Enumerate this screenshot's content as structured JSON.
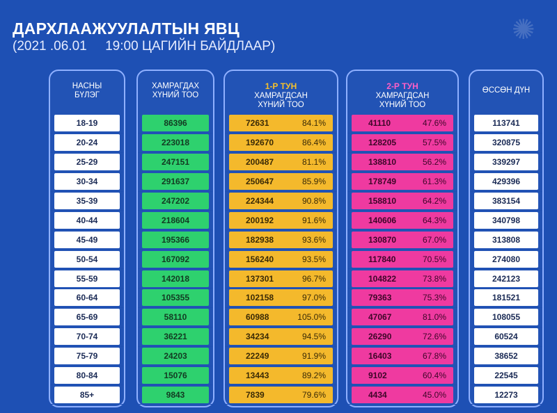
{
  "title": "ДАРХЛААЖУУЛАЛТЫН ЯВЦ",
  "subtitle": "(2021 .06.01     19:00 ЦАГИЙН БАЙДЛААР)",
  "headers": {
    "age": [
      "НАСНЫ",
      "БҮЛЭГ"
    ],
    "coverage": [
      "ХАМРАГДАХ",
      "ХҮНИЙ ТОО"
    ],
    "dose1": {
      "label": "1-Р ТУН",
      "lines": [
        "ХАМРАГДСАН",
        "ХҮНИЙ ТОО"
      ]
    },
    "dose2": {
      "label": "2-Р ТУН",
      "lines": [
        "ХАМРАГДСАН",
        "ХҮНИЙ ТОО"
      ]
    },
    "total": [
      "ӨССӨН ДҮН"
    ]
  },
  "colors": {
    "background": "#1e50b4",
    "coverage": "#2ed16e",
    "dose1": "#f4b92c",
    "dose2": "#ef3aa0"
  },
  "rows": [
    {
      "age": "18-19",
      "coverage": "86396",
      "d1": "72631",
      "d1pct": "84.1%",
      "d2": "41110",
      "d2pct": "47.6%",
      "total": "113741"
    },
    {
      "age": "20-24",
      "coverage": "223018",
      "d1": "192670",
      "d1pct": "86.4%",
      "d2": "128205",
      "d2pct": "57.5%",
      "total": "320875"
    },
    {
      "age": "25-29",
      "coverage": "247151",
      "d1": "200487",
      "d1pct": "81.1%",
      "d2": "138810",
      "d2pct": "56.2%",
      "total": "339297"
    },
    {
      "age": "30-34",
      "coverage": "291637",
      "d1": "250647",
      "d1pct": "85.9%",
      "d2": "178749",
      "d2pct": "61.3%",
      "total": "429396"
    },
    {
      "age": "35-39",
      "coverage": "247202",
      "d1": "224344",
      "d1pct": "90.8%",
      "d2": "158810",
      "d2pct": "64.2%",
      "total": "383154"
    },
    {
      "age": "40-44",
      "coverage": "218604",
      "d1": "200192",
      "d1pct": "91.6%",
      "d2": "140606",
      "d2pct": "64.3%",
      "total": "340798"
    },
    {
      "age": "45-49",
      "coverage": "195366",
      "d1": "182938",
      "d1pct": "93.6%",
      "d2": "130870",
      "d2pct": "67.0%",
      "total": "313808"
    },
    {
      "age": "50-54",
      "coverage": "167092",
      "d1": "156240",
      "d1pct": "93.5%",
      "d2": "117840",
      "d2pct": "70.5%",
      "total": "274080"
    },
    {
      "age": "55-59",
      "coverage": "142018",
      "d1": "137301",
      "d1pct": "96.7%",
      "d2": "104822",
      "d2pct": "73.8%",
      "total": "242123"
    },
    {
      "age": "60-64",
      "coverage": "105355",
      "d1": "102158",
      "d1pct": "97.0%",
      "d2": "79363",
      "d2pct": "75.3%",
      "total": "181521"
    },
    {
      "age": "65-69",
      "coverage": "58110",
      "d1": "60988",
      "d1pct": "105.0%",
      "d2": "47067",
      "d2pct": "81.0%",
      "total": "108055"
    },
    {
      "age": "70-74",
      "coverage": "36221",
      "d1": "34234",
      "d1pct": "94.5%",
      "d2": "26290",
      "d2pct": "72.6%",
      "total": "60524"
    },
    {
      "age": "75-79",
      "coverage": "24203",
      "d1": "22249",
      "d1pct": "91.9%",
      "d2": "16403",
      "d2pct": "67.8%",
      "total": "38652"
    },
    {
      "age": "80-84",
      "coverage": "15076",
      "d1": "13443",
      "d1pct": "89.2%",
      "d2": "9102",
      "d2pct": "60.4%",
      "total": "22545"
    },
    {
      "age": "85+",
      "coverage": "9843",
      "d1": "7839",
      "d1pct": "79.6%",
      "d2": "4434",
      "d2pct": "45.0%",
      "total": "12273"
    }
  ]
}
